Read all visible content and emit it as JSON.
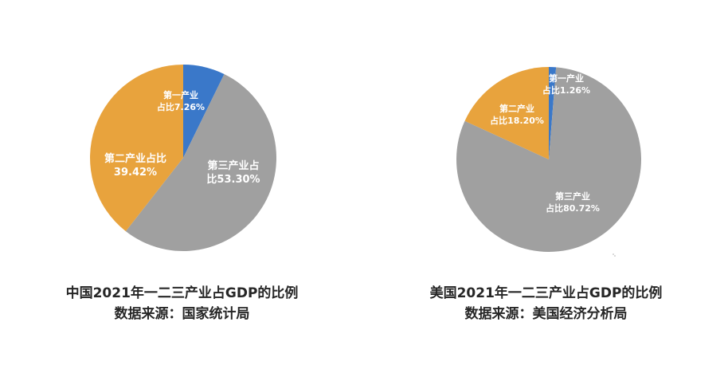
{
  "colors": {
    "primary": "#3a78c9",
    "secondary": "#e8a33d",
    "tertiary": "#a0a0a0"
  },
  "chart_data": [
    {
      "type": "pie",
      "title": "中国2021年一二三产业占GDP的比例",
      "source": "数据来源：国家统计局",
      "slices": [
        {
          "label_lines": [
            "第一产业",
            "占比7.26%"
          ],
          "value": 7.26,
          "color": "#3a78c9"
        },
        {
          "label_lines": [
            "第三产业占",
            "比53.30%"
          ],
          "value": 53.3,
          "color": "#a0a0a0"
        },
        {
          "label_lines": [
            "第二产业占比",
            "39.42%"
          ],
          "value": 39.42,
          "color": "#e8a33d"
        }
      ]
    },
    {
      "type": "pie",
      "title": "美国2021年一二三产业占GDP的比例",
      "source": "数据来源：美国经济分析局",
      "slices": [
        {
          "label_lines": [
            "第一产业",
            "占比1.26%"
          ],
          "value": 1.26,
          "color": "#3a78c9"
        },
        {
          "label_lines": [
            "第三产业",
            "占比80.72%"
          ],
          "value": 80.72,
          "color": "#a0a0a0"
        },
        {
          "label_lines": [
            "第二产业",
            "占比18.20%"
          ],
          "value": 18.2,
          "color": "#e8a33d"
        }
      ]
    }
  ]
}
